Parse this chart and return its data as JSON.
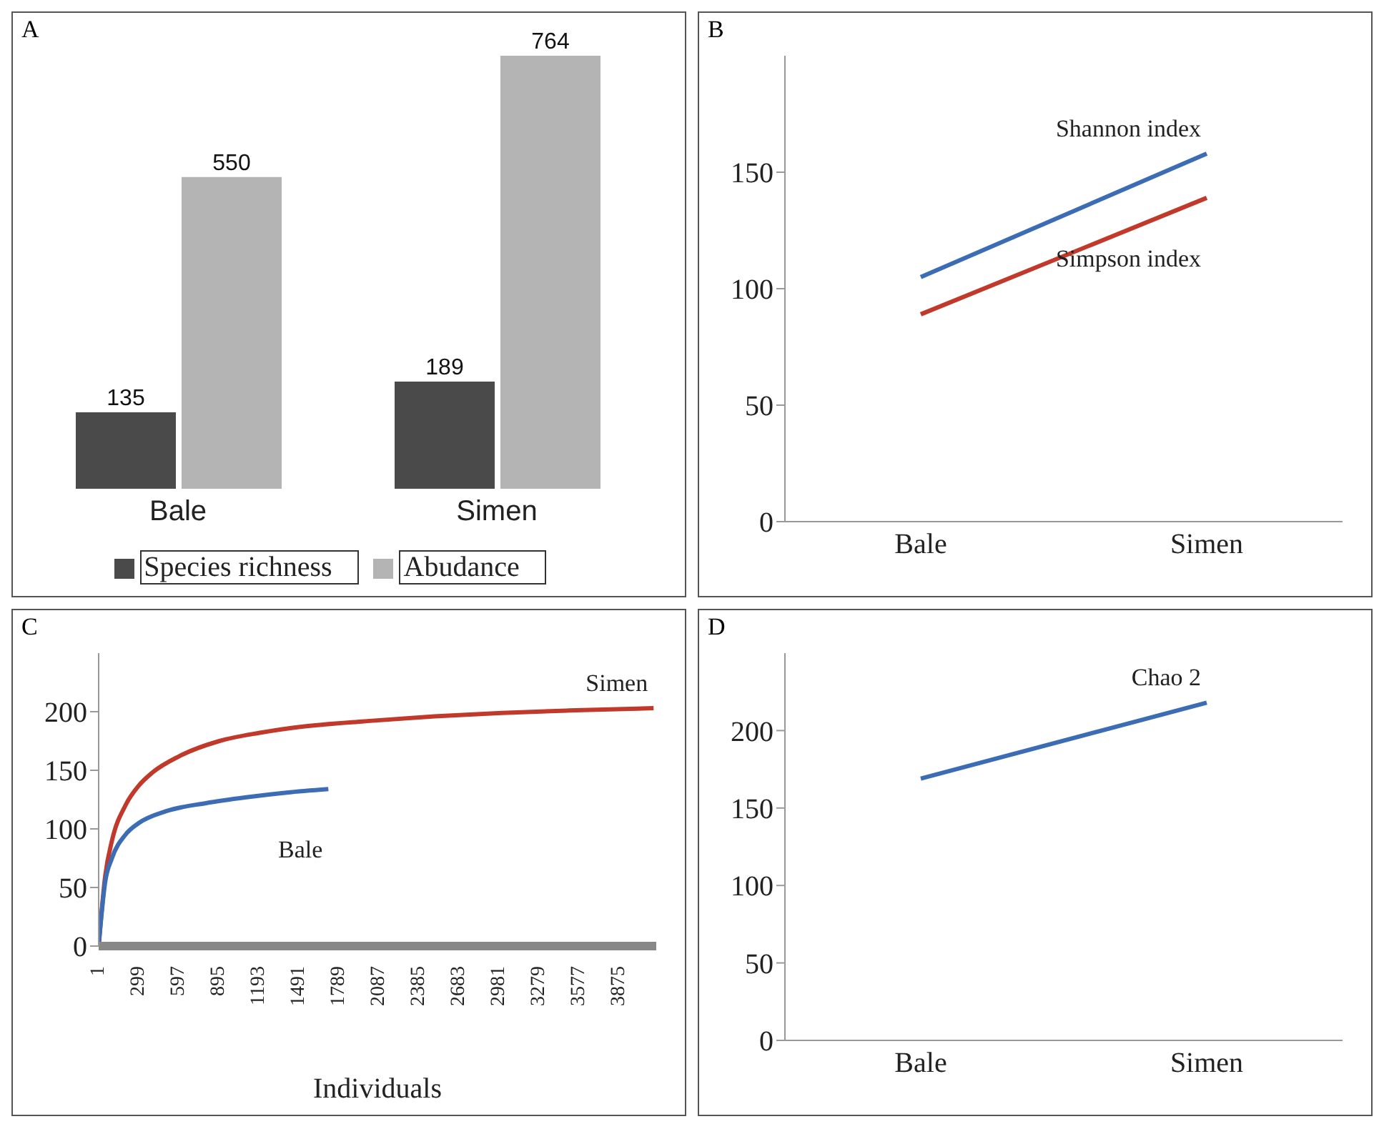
{
  "chart_data": [
    {
      "type": "bar",
      "title": "A",
      "categories": [
        "Bale",
        "Simen"
      ],
      "series": [
        {
          "name": "Species richness",
          "color": "#4a4a4a",
          "values": [
            135,
            189
          ]
        },
        {
          "name": "Abudance",
          "color": "#b4b4b4",
          "values": [
            550,
            764
          ]
        }
      ],
      "data_labels": true,
      "legend": "bottom"
    },
    {
      "type": "line",
      "title": "B",
      "categories": [
        "Bale",
        "Simen"
      ],
      "series": [
        {
          "name": "Shannon index",
          "color": "#3c6db4",
          "values": [
            105,
            158
          ]
        },
        {
          "name": "Simpson index",
          "color": "#c0392b",
          "values": [
            89,
            139
          ]
        }
      ],
      "ylim": [
        0,
        200
      ],
      "yticks": [
        0,
        50,
        100,
        150
      ],
      "marker": "none"
    },
    {
      "type": "line",
      "title": "C",
      "xlabel": "Individuals",
      "series": [
        {
          "name": "Simen",
          "color": "#c0392b",
          "x": [
            1,
            50,
            100,
            200,
            300,
            400,
            600,
            900,
            1200,
            1500,
            2000,
            2500,
            3000,
            3500,
            4130
          ],
          "values": [
            0,
            60,
            90,
            120,
            137,
            148,
            162,
            175,
            182,
            187,
            192,
            196,
            199,
            201,
            203
          ]
        },
        {
          "name": "Bale",
          "color": "#3c6db4",
          "x": [
            1,
            50,
            100,
            200,
            300,
            500,
            800,
            1100,
            1400,
            1710
          ],
          "values": [
            0,
            55,
            75,
            95,
            105,
            115,
            122,
            127,
            131,
            134
          ]
        }
      ],
      "xlim": [
        1,
        4150
      ],
      "xticks": [
        1,
        299,
        597,
        895,
        1193,
        1491,
        1789,
        2087,
        2385,
        2683,
        2981,
        3279,
        3577,
        3875
      ],
      "ylim": [
        0,
        250
      ],
      "yticks": [
        0,
        50,
        100,
        150,
        200
      ],
      "marker": "none"
    },
    {
      "type": "line",
      "title": "D",
      "categories": [
        "Bale",
        "Simen"
      ],
      "series": [
        {
          "name": "Chao 2",
          "color": "#3c6db4",
          "values": [
            169,
            218
          ]
        }
      ],
      "ylim": [
        0,
        250
      ],
      "yticks": [
        0,
        50,
        100,
        150,
        200
      ],
      "marker": "none"
    }
  ]
}
